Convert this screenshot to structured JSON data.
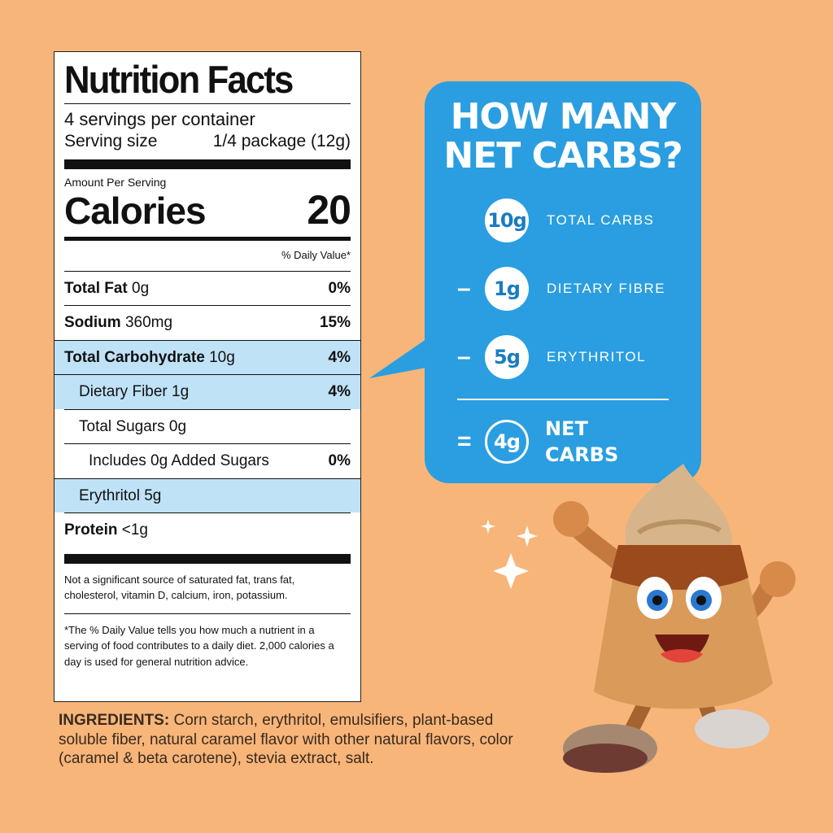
{
  "nutrition": {
    "title": "Nutrition Facts",
    "servings_per_container": "4 servings per container",
    "serving_size_label": "Serving size",
    "serving_size_value": "1/4 package (12g)",
    "amount_per_serving": "Amount Per Serving",
    "calories_label": "Calories",
    "calories_value": "20",
    "daily_value_header": "% Daily Value*",
    "rows": [
      {
        "bold_label": "Total Fat",
        "value": "0g",
        "pct": "0%"
      },
      {
        "bold_label": "Sodium",
        "value": "360mg",
        "pct": "15%"
      },
      {
        "bold_label": "Total Carbohydrate",
        "value": "10g",
        "pct": "4%"
      },
      {
        "label": "Dietary Fiber 1g",
        "pct": "4%"
      },
      {
        "label": "Total Sugars 0g",
        "pct": ""
      },
      {
        "label": "Includes 0g Added Sugars",
        "pct": "0%"
      },
      {
        "label": "Erythritol 5g",
        "pct": ""
      },
      {
        "bold_label": "Protein",
        "value": "<1g",
        "pct": ""
      }
    ],
    "note1": "Not a significant source of saturated fat, trans fat, cholesterol, vitamin D, calcium, iron, potassium.",
    "note2": "*The % Daily Value tells you how much a nutrient in a serving of food contributes to a daily diet. 2,000 calories a day is used for general nutrition advice."
  },
  "ingredients": {
    "label": "INGREDIENTS:",
    "text": " Corn starch, erythritol, emulsifiers, plant-based soluble fiber, natural caramel flavor with other natural flavors, color (caramel & beta carotene), stevia extract, salt."
  },
  "bubble": {
    "title_line1": "HOW MANY",
    "title_line2": "NET CARBS?",
    "items": [
      {
        "op": "",
        "amount": "10g",
        "label": "TOTAL CARBS"
      },
      {
        "op": "–",
        "amount": "1g",
        "label": "DIETARY FIBRE"
      },
      {
        "op": "–",
        "amount": "5g",
        "label": "ERYTHRITOL"
      }
    ],
    "result_op": "=",
    "result_amount": "4g",
    "result_line1": "NET",
    "result_line2": "CARBS"
  },
  "colors": {
    "background": "#f7b57a",
    "bubble": "#2a9ee0",
    "highlight_row": "#bfe2f7"
  }
}
